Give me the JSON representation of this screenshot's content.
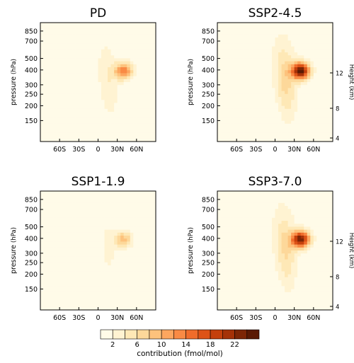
{
  "chart_data": {
    "type": "heatmap",
    "panels": [
      {
        "id": "pd",
        "title": "PD",
        "intensity": 0.55,
        "show_height_axis": false
      },
      {
        "id": "ssp245",
        "title": "SSP2-4.5",
        "intensity": 1.0,
        "show_height_axis": true
      },
      {
        "id": "ssp119",
        "title": "SSP1-1.9",
        "intensity": 0.35,
        "show_height_axis": false
      },
      {
        "id": "ssp370",
        "title": "SSP3-7.0",
        "intensity": 0.95,
        "show_height_axis": true
      }
    ],
    "x_axis": {
      "range": [
        -90,
        90
      ],
      "ticks": [
        {
          "value": -60,
          "label": "60S"
        },
        {
          "value": -30,
          "label": "30S"
        },
        {
          "value": 0,
          "label": "0"
        },
        {
          "value": 30,
          "label": "30N"
        },
        {
          "value": 60,
          "label": "60N"
        }
      ]
    },
    "y_axis": {
      "label": "pressure",
      "unit_label": "(hPa)",
      "scale": "log",
      "range": [
        1000,
        100
      ],
      "ticks": [
        150,
        200,
        250,
        300,
        400,
        500,
        700,
        850
      ]
    },
    "y2_axis": {
      "label": "Height (km)",
      "ticks": [
        12,
        8,
        4
      ]
    },
    "colorbar": {
      "label": "contribution (fmol/mol)",
      "levels": [
        0,
        2,
        4,
        6,
        8,
        10,
        12,
        14,
        16,
        18,
        20,
        22,
        24
      ],
      "tick_labels": [
        2,
        6,
        10,
        14,
        18,
        22
      ],
      "colors": [
        "#fffbe8",
        "#fff3d2",
        "#fee8b6",
        "#fdd89a",
        "#fdc27c",
        "#fca65f",
        "#f98a44",
        "#f06c2b",
        "#dd5317",
        "#c4400c",
        "#a53208",
        "#7d2606",
        "#5a1a04"
      ]
    }
  }
}
